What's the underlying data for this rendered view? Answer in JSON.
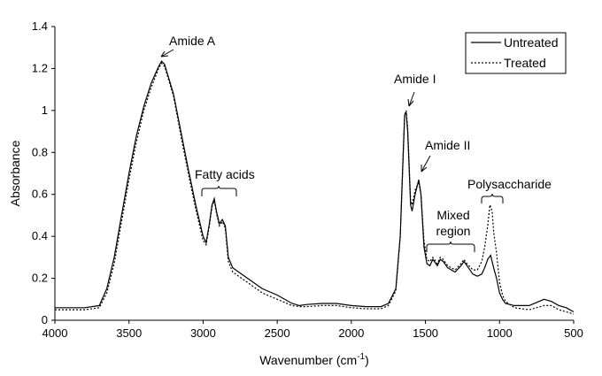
{
  "chart_data": {
    "type": "line",
    "xlabel_main": "Wavenumber (cm",
    "xlabel_sup": "-1",
    "xlabel_end": ")",
    "ylabel": "Absorbance",
    "xlim": [
      4000,
      500
    ],
    "ylim": [
      0,
      1.4
    ],
    "x_ticks": [
      4000,
      3500,
      3000,
      2500,
      2000,
      1500,
      1000,
      500
    ],
    "y_ticks": [
      0,
      0.2,
      0.4,
      0.6,
      0.8,
      1,
      1.2,
      1.4
    ],
    "y_tick_labels": [
      "0",
      "0.2",
      "0.4",
      "0.6",
      "0.8",
      "1",
      "1.2",
      "1.4"
    ],
    "grid": false,
    "legend_position": "top-right",
    "series": [
      {
        "name": "Untreated",
        "style": "solid",
        "points": [
          [
            4000,
            0.06
          ],
          [
            3900,
            0.06
          ],
          [
            3800,
            0.06
          ],
          [
            3700,
            0.07
          ],
          [
            3650,
            0.15
          ],
          [
            3600,
            0.3
          ],
          [
            3550,
            0.5
          ],
          [
            3500,
            0.7
          ],
          [
            3450,
            0.88
          ],
          [
            3400,
            1.02
          ],
          [
            3350,
            1.13
          ],
          [
            3300,
            1.21
          ],
          [
            3280,
            1.235
          ],
          [
            3260,
            1.22
          ],
          [
            3200,
            1.08
          ],
          [
            3150,
            0.9
          ],
          [
            3100,
            0.72
          ],
          [
            3050,
            0.55
          ],
          [
            3000,
            0.4
          ],
          [
            2980,
            0.37
          ],
          [
            2960,
            0.45
          ],
          [
            2940,
            0.55
          ],
          [
            2925,
            0.58
          ],
          [
            2910,
            0.52
          ],
          [
            2890,
            0.46
          ],
          [
            2870,
            0.48
          ],
          [
            2850,
            0.45
          ],
          [
            2830,
            0.3
          ],
          [
            2800,
            0.25
          ],
          [
            2700,
            0.2
          ],
          [
            2600,
            0.15
          ],
          [
            2500,
            0.12
          ],
          [
            2400,
            0.08
          ],
          [
            2350,
            0.07
          ],
          [
            2300,
            0.075
          ],
          [
            2200,
            0.08
          ],
          [
            2100,
            0.08
          ],
          [
            2000,
            0.07
          ],
          [
            1900,
            0.065
          ],
          [
            1800,
            0.065
          ],
          [
            1750,
            0.08
          ],
          [
            1700,
            0.15
          ],
          [
            1670,
            0.4
          ],
          [
            1650,
            0.8
          ],
          [
            1640,
            0.98
          ],
          [
            1630,
            0.99
          ],
          [
            1620,
            0.9
          ],
          [
            1600,
            0.55
          ],
          [
            1590,
            0.52
          ],
          [
            1570,
            0.6
          ],
          [
            1545,
            0.67
          ],
          [
            1530,
            0.6
          ],
          [
            1510,
            0.35
          ],
          [
            1490,
            0.27
          ],
          [
            1470,
            0.26
          ],
          [
            1450,
            0.29
          ],
          [
            1420,
            0.26
          ],
          [
            1400,
            0.29
          ],
          [
            1380,
            0.28
          ],
          [
            1350,
            0.25
          ],
          [
            1300,
            0.23
          ],
          [
            1260,
            0.26
          ],
          [
            1240,
            0.28
          ],
          [
            1220,
            0.26
          ],
          [
            1180,
            0.22
          ],
          [
            1150,
            0.21
          ],
          [
            1120,
            0.22
          ],
          [
            1100,
            0.25
          ],
          [
            1080,
            0.29
          ],
          [
            1060,
            0.31
          ],
          [
            1040,
            0.25
          ],
          [
            1020,
            0.2
          ],
          [
            1000,
            0.13
          ],
          [
            980,
            0.1
          ],
          [
            960,
            0.08
          ],
          [
            900,
            0.07
          ],
          [
            800,
            0.07
          ],
          [
            700,
            0.1
          ],
          [
            650,
            0.09
          ],
          [
            600,
            0.07
          ],
          [
            550,
            0.06
          ],
          [
            500,
            0.04
          ]
        ]
      },
      {
        "name": "Treated",
        "style": "dotted",
        "points": [
          [
            4000,
            0.05
          ],
          [
            3900,
            0.05
          ],
          [
            3800,
            0.05
          ],
          [
            3700,
            0.06
          ],
          [
            3650,
            0.13
          ],
          [
            3600,
            0.27
          ],
          [
            3550,
            0.47
          ],
          [
            3500,
            0.67
          ],
          [
            3450,
            0.85
          ],
          [
            3400,
            1.0
          ],
          [
            3350,
            1.11
          ],
          [
            3300,
            1.2
          ],
          [
            3280,
            1.225
          ],
          [
            3260,
            1.21
          ],
          [
            3200,
            1.07
          ],
          [
            3150,
            0.88
          ],
          [
            3100,
            0.7
          ],
          [
            3050,
            0.53
          ],
          [
            3000,
            0.38
          ],
          [
            2980,
            0.36
          ],
          [
            2960,
            0.44
          ],
          [
            2940,
            0.54
          ],
          [
            2925,
            0.57
          ],
          [
            2910,
            0.51
          ],
          [
            2890,
            0.45
          ],
          [
            2870,
            0.47
          ],
          [
            2850,
            0.44
          ],
          [
            2830,
            0.28
          ],
          [
            2800,
            0.23
          ],
          [
            2700,
            0.18
          ],
          [
            2600,
            0.13
          ],
          [
            2500,
            0.1
          ],
          [
            2400,
            0.07
          ],
          [
            2350,
            0.065
          ],
          [
            2300,
            0.065
          ],
          [
            2200,
            0.07
          ],
          [
            2100,
            0.07
          ],
          [
            2000,
            0.06
          ],
          [
            1900,
            0.055
          ],
          [
            1800,
            0.055
          ],
          [
            1750,
            0.07
          ],
          [
            1700,
            0.14
          ],
          [
            1670,
            0.4
          ],
          [
            1650,
            0.8
          ],
          [
            1640,
            0.98
          ],
          [
            1630,
            1.0
          ],
          [
            1620,
            0.92
          ],
          [
            1600,
            0.57
          ],
          [
            1590,
            0.55
          ],
          [
            1570,
            0.62
          ],
          [
            1545,
            0.66
          ],
          [
            1530,
            0.6
          ],
          [
            1510,
            0.38
          ],
          [
            1490,
            0.29
          ],
          [
            1470,
            0.28
          ],
          [
            1450,
            0.3
          ],
          [
            1420,
            0.27
          ],
          [
            1400,
            0.3
          ],
          [
            1380,
            0.29
          ],
          [
            1350,
            0.26
          ],
          [
            1300,
            0.24
          ],
          [
            1260,
            0.27
          ],
          [
            1240,
            0.29
          ],
          [
            1220,
            0.27
          ],
          [
            1180,
            0.24
          ],
          [
            1150,
            0.24
          ],
          [
            1120,
            0.28
          ],
          [
            1100,
            0.35
          ],
          [
            1080,
            0.45
          ],
          [
            1065,
            0.55
          ],
          [
            1050,
            0.52
          ],
          [
            1040,
            0.42
          ],
          [
            1020,
            0.32
          ],
          [
            1000,
            0.18
          ],
          [
            980,
            0.12
          ],
          [
            960,
            0.09
          ],
          [
            900,
            0.06
          ],
          [
            800,
            0.05
          ],
          [
            700,
            0.07
          ],
          [
            650,
            0.07
          ],
          [
            600,
            0.05
          ],
          [
            550,
            0.04
          ],
          [
            500,
            0.03
          ]
        ]
      }
    ],
    "annotations": [
      {
        "text": "Amide A"
      },
      {
        "text": "Fatty acids"
      },
      {
        "text": "Amide I"
      },
      {
        "text": "Amide II"
      },
      {
        "text": "Mixed"
      },
      {
        "text": "region"
      },
      {
        "text": "Polysaccharide"
      }
    ]
  }
}
